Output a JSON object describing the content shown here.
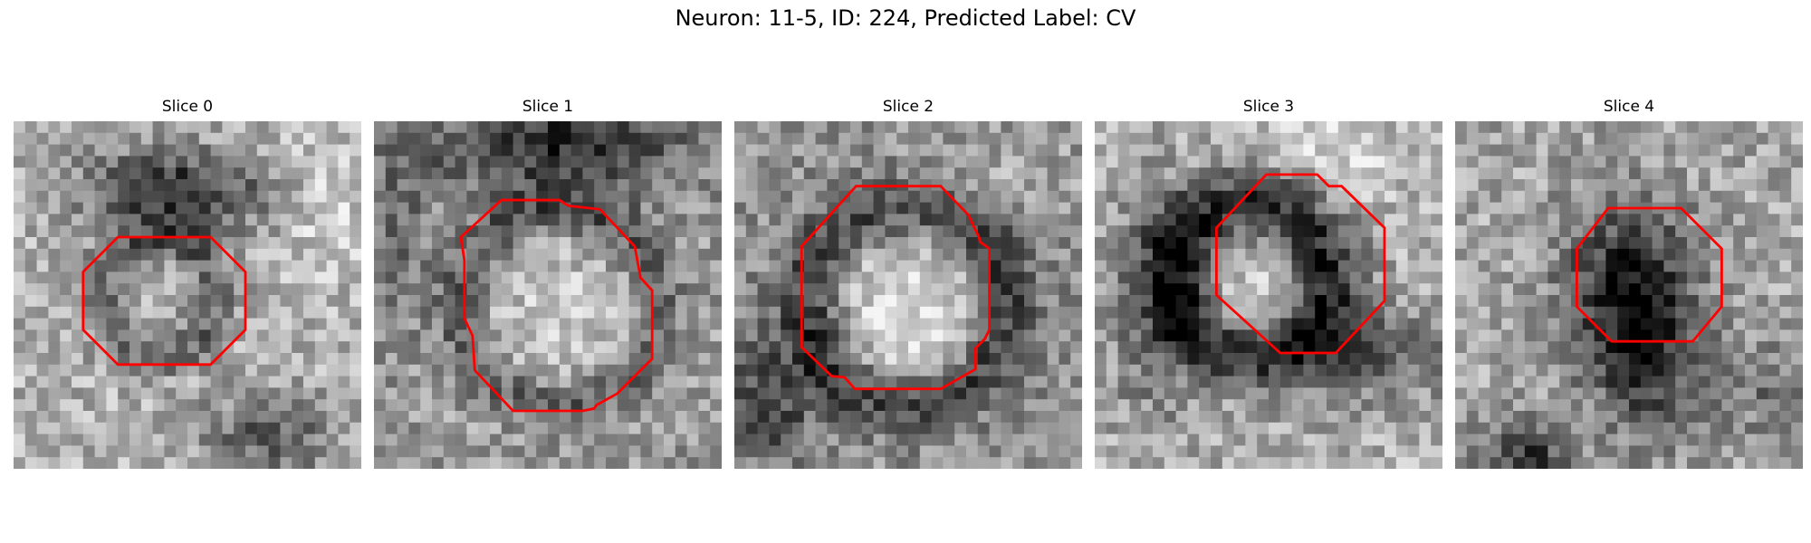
{
  "figure": {
    "title": "Neuron: 11-5, ID: 224, Predicted Label: CV"
  },
  "panels": [
    {
      "title": "Slice 0",
      "image": "grayscale EM microscopy crop with a dark ring; red octagon contour outlines the lower-left region",
      "contour_color": "#ff0000"
    },
    {
      "title": "Slice 1",
      "image": "grayscale EM microscopy crop with a light round interior; red polygon contour traces its boundary",
      "contour_color": "#ff0000"
    },
    {
      "title": "Slice 2",
      "image": "grayscale EM microscopy crop with a bright round interior inside a dark rim; red polygon contour around it",
      "contour_color": "#ff0000"
    },
    {
      "title": "Slice 3",
      "image": "grayscale EM microscopy crop with a dark crescent structure; red octagon contour upper-center",
      "contour_color": "#ff0000"
    },
    {
      "title": "Slice 4",
      "image": "grayscale EM microscopy crop with a dark blob; red octagon contour around it",
      "contour_color": "#ff0000"
    }
  ]
}
